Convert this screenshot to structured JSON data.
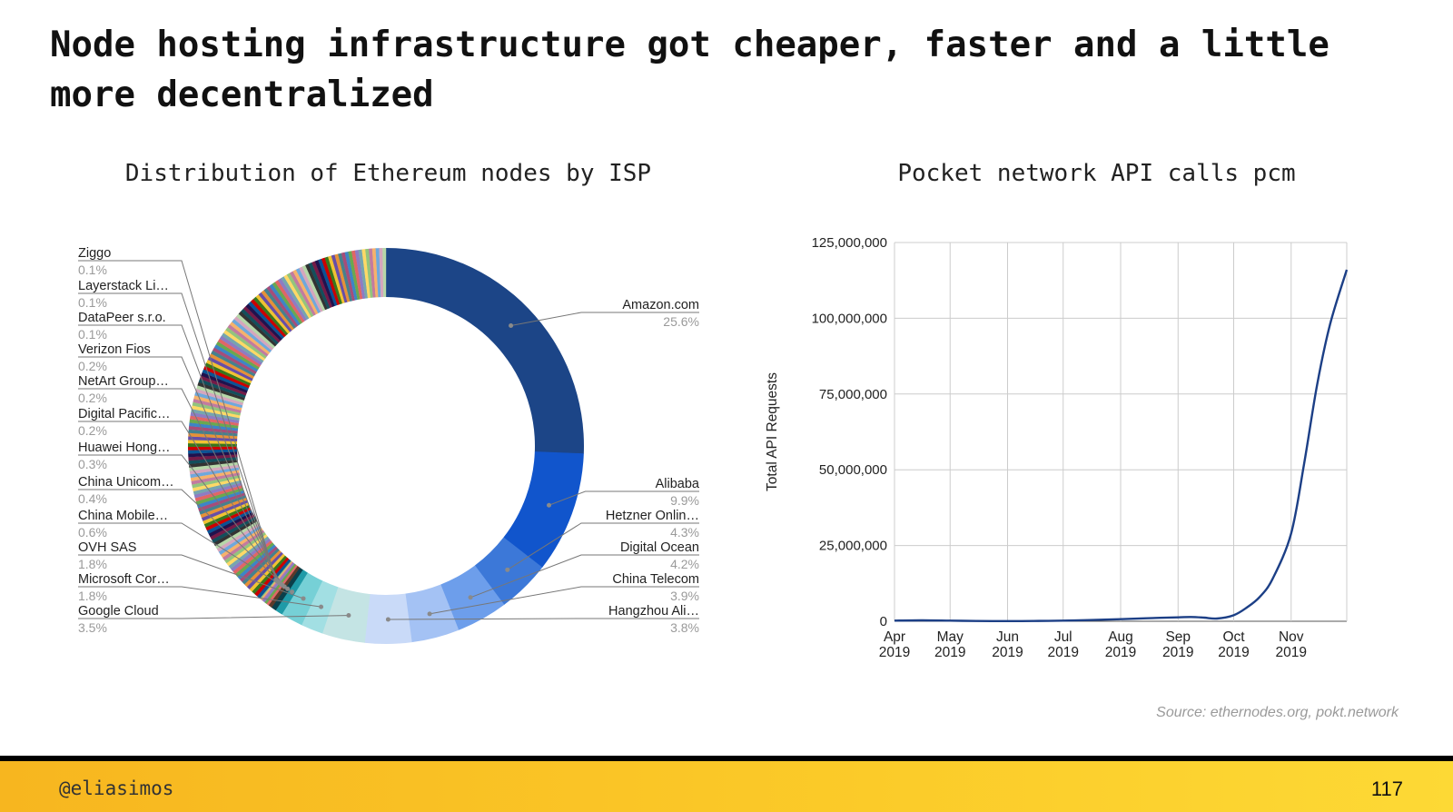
{
  "slide": {
    "title": "Node hosting infrastructure got cheaper, faster and a little more decentralized",
    "source": "Source: ethernodes.org, pokt.network",
    "handle": "@eliasimos",
    "page_number": "117"
  },
  "chart_data": [
    {
      "type": "pie",
      "style": "donut",
      "title": "Distribution of Ethereum nodes by ISP",
      "slices": [
        {
          "label": "Amazon.com",
          "value": 25.6,
          "display": "25.6%",
          "color": "#1c4587"
        },
        {
          "label": "Alibaba",
          "value": 9.9,
          "display": "9.9%",
          "color": "#1155cc"
        },
        {
          "label": "Hetzner Onlin…",
          "value": 4.3,
          "display": "4.3%",
          "color": "#3c78d8"
        },
        {
          "label": "Digital Ocean",
          "value": 4.2,
          "display": "4.2%",
          "color": "#6d9eeb"
        },
        {
          "label": "China Telecom",
          "value": 3.9,
          "display": "3.9%",
          "color": "#a4c2f4"
        },
        {
          "label": "Hangzhou Ali…",
          "value": 3.8,
          "display": "3.8%",
          "color": "#c9daf8"
        },
        {
          "label": "Google Cloud",
          "value": 3.5,
          "display": "3.5%",
          "color": "#c4e4e4"
        },
        {
          "label": "Microsoft Cor…",
          "value": 1.8,
          "display": "1.8%",
          "color": "#a2dfe3"
        },
        {
          "label": "OVH SAS",
          "value": 1.8,
          "display": "1.8%",
          "color": "#76d0d6"
        },
        {
          "label": "China Mobile…",
          "value": 0.6,
          "display": "0.6%",
          "color": "#1f9aa7"
        },
        {
          "label": "China Unicom…",
          "value": 0.4,
          "display": "0.4%",
          "color": "#0b3f4a"
        },
        {
          "label": "Huawei Hong…",
          "value": 0.3,
          "display": "0.3%",
          "color": "#5b3a29"
        },
        {
          "label": "Digital Pacific…",
          "value": 0.2,
          "display": "0.2%",
          "color": "#e06666"
        },
        {
          "label": "NetArt Group…",
          "value": 0.2,
          "display": "0.2%",
          "color": "#6aa84f"
        },
        {
          "label": "Verizon Fios",
          "value": 0.2,
          "display": "0.2%",
          "color": "#8e7cc3"
        },
        {
          "label": "DataPeer s.r.o.",
          "value": 0.1,
          "display": "0.1%",
          "color": "#c27ba0"
        },
        {
          "label": "Layerstack Li…",
          "value": 0.1,
          "display": "0.1%",
          "color": "#f6b26b"
        },
        {
          "label": "Ziggo",
          "value": 0.1,
          "display": "0.1%",
          "color": "#93c47d"
        }
      ],
      "other_color_palette": [
        "#0b5394",
        "#cc0000",
        "#38761d",
        "#f1c232",
        "#674ea7",
        "#e69138",
        "#45818e",
        "#a64d79",
        "#3d85c6",
        "#6aa84f",
        "#e06666",
        "#8e7cc3",
        "#76a5af",
        "#ffd966",
        "#93c47d",
        "#c27ba0",
        "#f6b26b",
        "#6fa8dc",
        "#d5a6bd",
        "#b6d7a8",
        "#333333",
        "#134f5c",
        "#741b47",
        "#20124d"
      ],
      "legend": "labels beside slices"
    },
    {
      "type": "line",
      "title": "Pocket network API calls pcm",
      "xlabel": "",
      "ylabel": "Total API Requests",
      "x_ticks": [
        {
          "month": "Apr",
          "year": "2019"
        },
        {
          "month": "May",
          "year": "2019"
        },
        {
          "month": "Jun",
          "year": "2019"
        },
        {
          "month": "Jul",
          "year": "2019"
        },
        {
          "month": "Aug",
          "year": "2019"
        },
        {
          "month": "Sep",
          "year": "2019"
        },
        {
          "month": "Oct",
          "year": "2019"
        },
        {
          "month": "Nov",
          "year": "2019"
        }
      ],
      "y_ticks": [
        "0",
        "25,000,000",
        "50,000,000",
        "75,000,000",
        "100,000,000",
        "125,000,000"
      ],
      "ylim": [
        0,
        125000000
      ],
      "x": [
        "2019-04-01",
        "2019-04-15",
        "2019-05-01",
        "2019-05-15",
        "2019-06-01",
        "2019-06-15",
        "2019-07-01",
        "2019-07-15",
        "2019-08-01",
        "2019-08-15",
        "2019-09-01",
        "2019-09-08",
        "2019-09-15",
        "2019-09-22",
        "2019-10-01",
        "2019-10-08",
        "2019-10-15",
        "2019-10-22",
        "2019-11-01",
        "2019-11-08",
        "2019-11-15",
        "2019-11-22",
        "2019-12-01"
      ],
      "series": [
        {
          "values": [
            200000,
            300000,
            200000,
            100000,
            50000,
            100000,
            200000,
            400000,
            700000,
            1000000,
            1300000,
            1400000,
            1200000,
            900000,
            2000000,
            4500000,
            8000000,
            14000000,
            29000000,
            52000000,
            78000000,
            98000000,
            116000000
          ],
          "color": "#1c3f86"
        }
      ],
      "grid": true
    }
  ]
}
